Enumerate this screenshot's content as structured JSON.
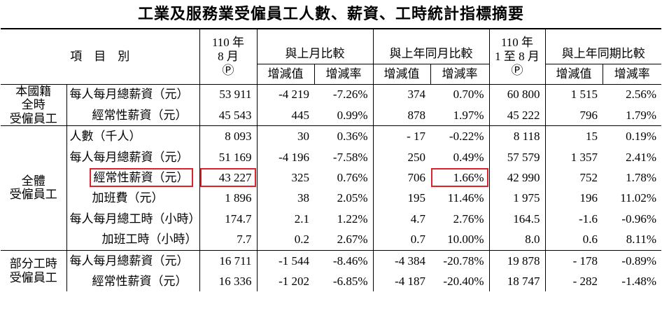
{
  "title": "工業及服務業受僱員工人數、薪資、工時統計指標摘要",
  "header": {
    "item": "項　目　別",
    "current": "110 年\n8 月\nⓅ",
    "vs_prev_month": "與上月比較",
    "vs_prev_year_month": "與上年同月比較",
    "cumulative": "110 年\n1 至 8 月\nⓅ",
    "vs_prev_year_period": "與上年同期比較",
    "sub": [
      "增減值",
      "增減率",
      "增減值",
      "增減率",
      "增減值",
      "增減率"
    ]
  },
  "groups": [
    {
      "label": "本國籍\n全時\n受僱員工",
      "rows": [
        {
          "item": "每人每月總薪資（元）",
          "cells": [
            "53 911",
            "-4 219",
            "-7.26%",
            "374",
            "0.70%",
            "60 800",
            "1 515",
            "2.56%"
          ]
        },
        {
          "item": "經常性薪資（元）",
          "cells": [
            "45 543",
            "445",
            "0.99%",
            "878",
            "1.97%",
            "45 222",
            "796",
            "1.79%"
          ]
        }
      ]
    },
    {
      "label": "全體\n受僱員工",
      "rows": [
        {
          "item": "人數（千人）",
          "cells": [
            "8 093",
            "30",
            "0.36%",
            "- 17",
            "-0.22%",
            "8 118",
            "15",
            "0.19%"
          ]
        },
        {
          "item": "每人每月總薪資（元）",
          "cells": [
            "51 169",
            "-4 196",
            "-7.58%",
            "250",
            "0.49%",
            "57 579",
            "1 357",
            "2.41%"
          ]
        },
        {
          "item": "經常性薪資（元）",
          "cells": [
            "43 227",
            "325",
            "0.76%",
            "706",
            "1.66%",
            "42 990",
            "752",
            "1.78%"
          ]
        },
        {
          "item": "加班費（元）",
          "cells": [
            "1 896",
            "38",
            "2.05%",
            "195",
            "11.46%",
            "1 975",
            "196",
            "11.02%"
          ]
        },
        {
          "item": "每人每月總工時（小時）",
          "cells": [
            "174.7",
            "2.1",
            "1.22%",
            "4.7",
            "2.76%",
            "164.5",
            "-1.6",
            "-0.96%"
          ]
        },
        {
          "item": "加班工時（小時）",
          "cells": [
            "7.7",
            "0.2",
            "2.67%",
            "0.7",
            "10.00%",
            "8.0",
            "0.6",
            "8.11%"
          ]
        }
      ]
    },
    {
      "label": "部分工時\n受僱員工",
      "rows": [
        {
          "item": "每人每月總薪資（元）",
          "cells": [
            "16 711",
            "-1 544",
            "-8.46%",
            "-4 384",
            "-20.78%",
            "19 878",
            "- 178",
            "-0.89%"
          ]
        },
        {
          "item": "經常性薪資（元）",
          "cells": [
            "16 336",
            "-1 202",
            "-6.85%",
            "-4 187",
            "-20.40%",
            "18 747",
            "- 282",
            "-1.48%"
          ]
        }
      ]
    }
  ]
}
